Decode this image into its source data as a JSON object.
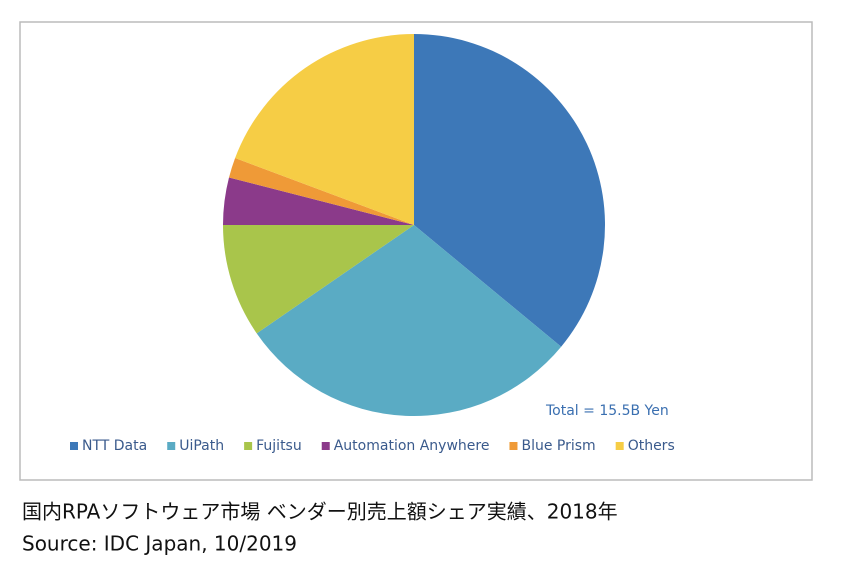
{
  "chart_data": {
    "type": "pie",
    "categories": [
      "NTT Data",
      "UiPath",
      "Fujitsu",
      "Automation Anywhere",
      "Blue Prism",
      "Others"
    ],
    "values": [
      36,
      29.4,
      9.6,
      4,
      1.7,
      19.3
    ],
    "colors": [
      "#3d78b8",
      "#5aabc4",
      "#a9c54b",
      "#8b3a8a",
      "#ef9a37",
      "#f6cd45"
    ],
    "annotation": "Total = 15.5B Yen",
    "legend": "bottom"
  },
  "caption": {
    "title": "国内RPAソフトウェア市場 ベンダー別売上額シェア実績、2018年",
    "source": "Source: IDC Japan, 10/2019"
  }
}
